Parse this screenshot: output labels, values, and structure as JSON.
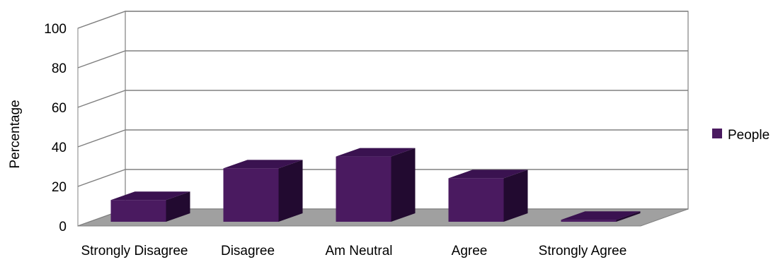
{
  "chart_data": {
    "type": "bar",
    "categories": [
      "Strongly Disagree",
      "Disagree",
      "Am Neutral",
      "Agree",
      "Strongly Agree"
    ],
    "series": [
      {
        "name": "People",
        "values": [
          11,
          27,
          33,
          22,
          1
        ]
      }
    ],
    "xlabel": "",
    "ylabel": "Percentage",
    "ylim": [
      0,
      100
    ],
    "yticks": [
      0,
      20,
      40,
      60,
      80,
      100
    ],
    "grid": true,
    "legend_position": "right",
    "colors": {
      "bar_front": "#4a1a60",
      "bar_top": "#3a1250",
      "bar_side": "#220a30",
      "floor": "#a0a0a0",
      "wall": "#ffffff",
      "grid": "#808080"
    }
  }
}
